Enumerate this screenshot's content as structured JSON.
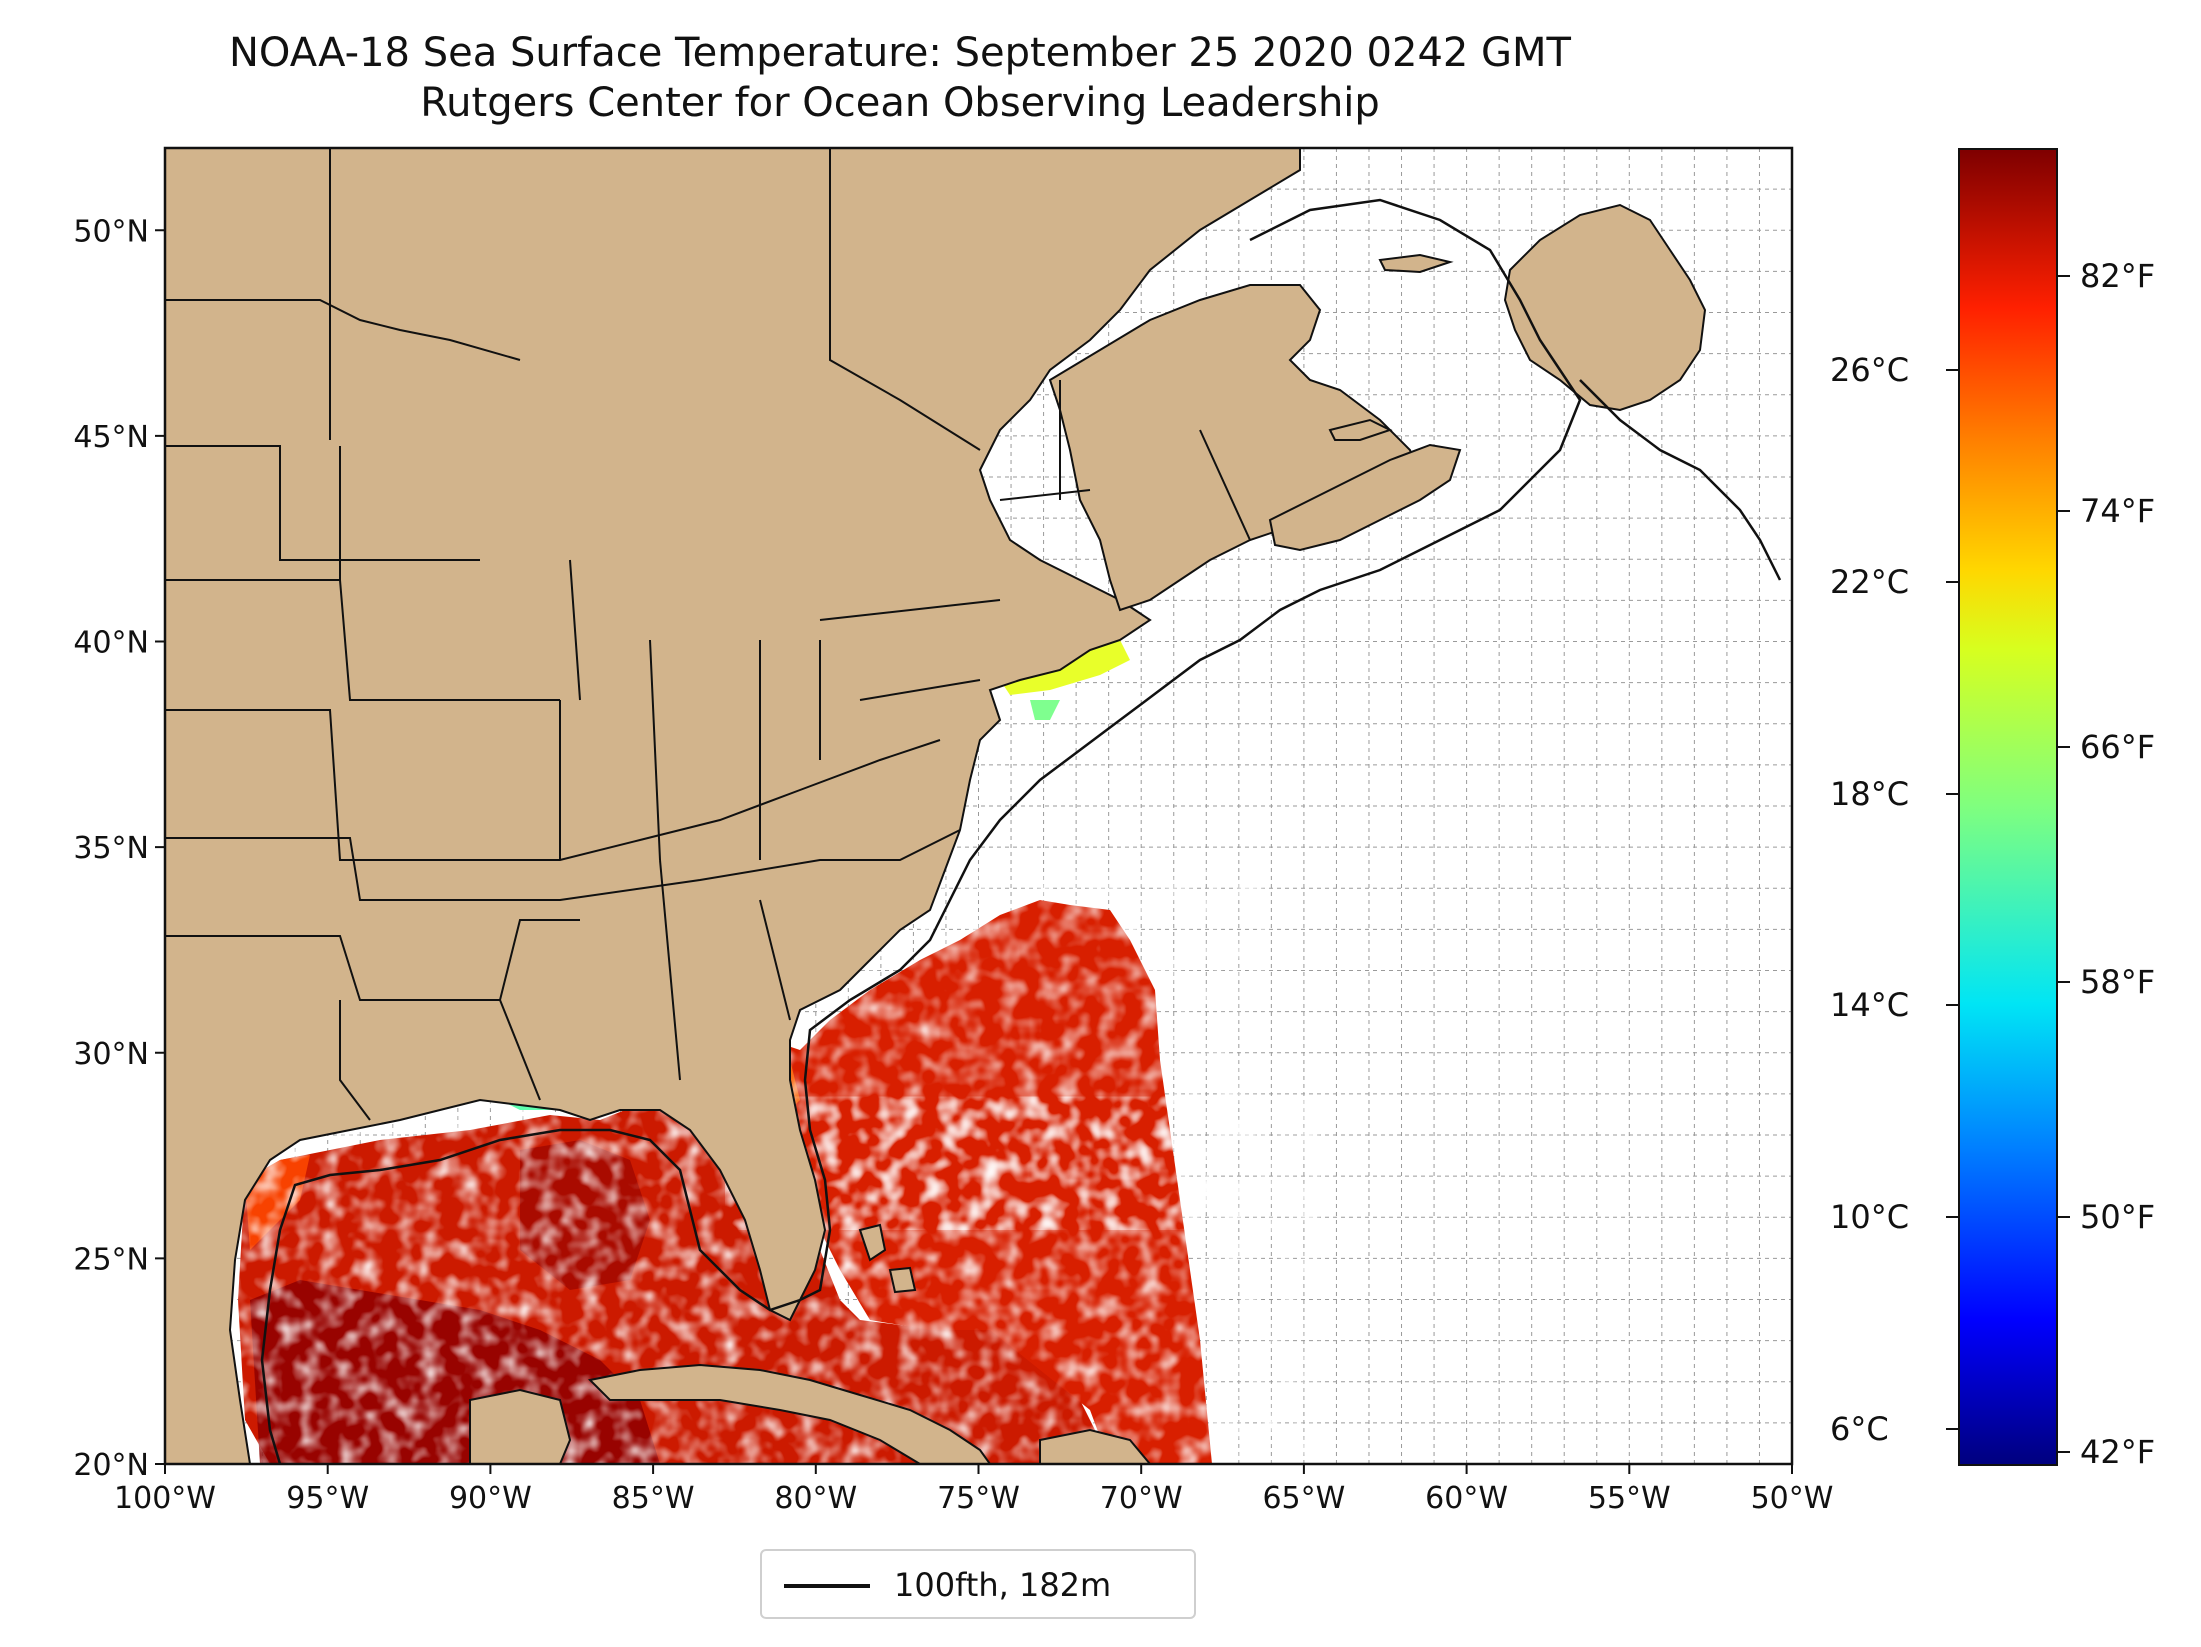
{
  "header": {
    "title": "NOAA-18 Sea Surface Temperature: September 25 2020 0242 GMT",
    "subtitle": "Rutgers Center for Ocean Observing Leadership"
  },
  "map": {
    "lon_range": [
      -100,
      -50
    ],
    "lat_range": [
      20,
      52
    ],
    "lon_ticks": [
      "100°W",
      "95°W",
      "90°W",
      "85°W",
      "80°W",
      "75°W",
      "70°W",
      "65°W",
      "60°W",
      "55°W",
      "50°W"
    ],
    "lat_ticks": [
      "20°N",
      "25°N",
      "30°N",
      "35°N",
      "40°N",
      "45°N",
      "50°N"
    ],
    "grid": "dashed gray, 1 degree",
    "land_color": "#d2b48c",
    "no_data_color": "#ffffff"
  },
  "legend": {
    "line_label": "100fth, 182m",
    "line_color": "#000000",
    "placement": "bottom-center"
  },
  "colorbar": {
    "colormap": "jet",
    "celsius_ticks": [
      "6°C",
      "10°C",
      "14°C",
      "18°C",
      "22°C",
      "26°C"
    ],
    "fahrenheit_ticks": [
      "42°F",
      "50°F",
      "58°F",
      "66°F",
      "74°F",
      "82°F"
    ]
  }
}
